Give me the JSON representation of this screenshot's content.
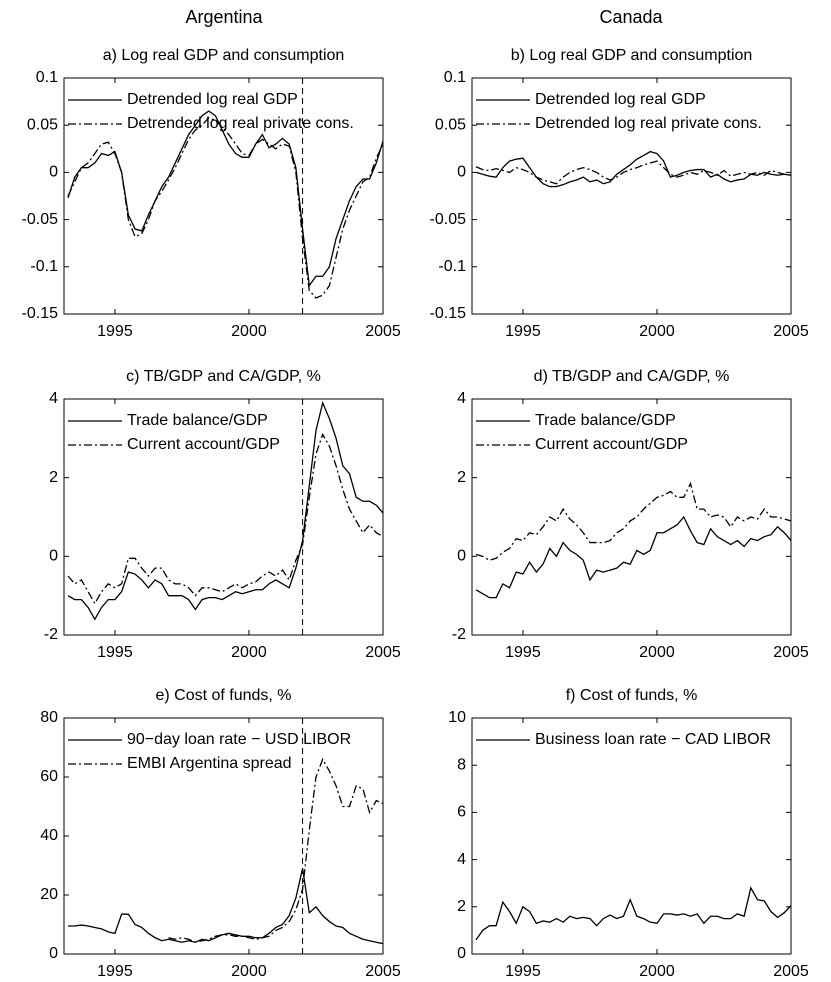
{
  "column_titles": [
    "Argentina",
    "Canada"
  ],
  "chart_data": [
    {
      "type": "line",
      "title": "a) Log real GDP and consumption",
      "legend": "upper left",
      "grid": false,
      "vline": 2002,
      "x": [
        1993.25,
        1993.5,
        1993.75,
        1994,
        1994.25,
        1994.5,
        1994.75,
        1995,
        1995.25,
        1995.5,
        1995.75,
        1996,
        1996.25,
        1996.5,
        1996.75,
        1997,
        1997.25,
        1997.5,
        1997.75,
        1998,
        1998.25,
        1998.5,
        1998.75,
        1999,
        1999.25,
        1999.5,
        1999.75,
        2000,
        2000.25,
        2000.5,
        2000.75,
        2001,
        2001.25,
        2001.5,
        2001.75,
        2002,
        2002.25,
        2002.5,
        2002.75,
        2003,
        2003.25,
        2003.5,
        2003.75,
        2004,
        2004.25,
        2004.5,
        2004.75,
        2005
      ],
      "xlim": [
        1993.1,
        2005
      ],
      "xticks": [
        1995,
        2000,
        2005
      ],
      "ylim": [
        -0.15,
        0.1
      ],
      "yticks": [
        -0.15,
        -0.1,
        -0.05,
        0,
        0.05,
        0.1
      ],
      "series": [
        {
          "name": "Detrended log real GDP",
          "color": "#000000",
          "style": "solid",
          "values": [
            -0.027,
            -0.005,
            0.005,
            0.005,
            0.01,
            0.02,
            0.018,
            0.022,
            0.0,
            -0.045,
            -0.06,
            -0.062,
            -0.045,
            -0.03,
            -0.015,
            -0.005,
            0.01,
            0.025,
            0.04,
            0.05,
            0.06,
            0.065,
            0.06,
            0.045,
            0.03,
            0.02,
            0.016,
            0.016,
            0.03,
            0.04,
            0.026,
            0.03,
            0.036,
            0.03,
            0.005,
            -0.06,
            -0.12,
            -0.11,
            -0.11,
            -0.1,
            -0.07,
            -0.05,
            -0.03,
            -0.015,
            -0.007,
            -0.007,
            0.01,
            0.033
          ]
        },
        {
          "name": "Detrended log real private cons.",
          "color": "#000000",
          "style": "dashdot",
          "values": [
            -0.025,
            -0.01,
            0.005,
            0.01,
            0.02,
            0.03,
            0.032,
            0.02,
            0.0,
            -0.05,
            -0.068,
            -0.065,
            -0.05,
            -0.03,
            -0.02,
            -0.008,
            0.005,
            0.02,
            0.035,
            0.045,
            0.05,
            0.058,
            0.055,
            0.048,
            0.04,
            0.03,
            0.02,
            0.018,
            0.03,
            0.035,
            0.03,
            0.025,
            0.03,
            0.028,
            0.0,
            -0.07,
            -0.125,
            -0.133,
            -0.13,
            -0.12,
            -0.09,
            -0.06,
            -0.04,
            -0.025,
            -0.01,
            -0.005,
            0.015,
            0.03
          ]
        }
      ]
    },
    {
      "type": "line",
      "title": "b) Log real GDP and consumption",
      "legend": "upper left",
      "grid": false,
      "x": [
        1993.25,
        1993.5,
        1993.75,
        1994,
        1994.25,
        1994.5,
        1994.75,
        1995,
        1995.25,
        1995.5,
        1995.75,
        1996,
        1996.25,
        1996.5,
        1996.75,
        1997,
        1997.25,
        1997.5,
        1997.75,
        1998,
        1998.25,
        1998.5,
        1998.75,
        1999,
        1999.25,
        1999.5,
        1999.75,
        2000,
        2000.25,
        2000.5,
        2000.75,
        2001,
        2001.25,
        2001.5,
        2001.75,
        2002,
        2002.25,
        2002.5,
        2002.75,
        2003,
        2003.25,
        2003.5,
        2003.75,
        2004,
        2004.25,
        2004.5,
        2004.75,
        2005
      ],
      "xlim": [
        1993.1,
        2005
      ],
      "xticks": [
        1995,
        2000,
        2005
      ],
      "ylim": [
        -0.15,
        0.1
      ],
      "yticks": [
        -0.15,
        -0.1,
        -0.05,
        0,
        0.05,
        0.1
      ],
      "series": [
        {
          "name": "Detrended log real GDP",
          "color": "#000000",
          "style": "solid",
          "values": [
            0.0,
            -0.002,
            -0.004,
            -0.005,
            0.005,
            0.012,
            0.014,
            0.015,
            0.005,
            -0.005,
            -0.012,
            -0.015,
            -0.015,
            -0.013,
            -0.01,
            -0.008,
            -0.005,
            -0.01,
            -0.008,
            -0.012,
            -0.01,
            -0.002,
            0.003,
            0.008,
            0.014,
            0.018,
            0.022,
            0.02,
            0.012,
            -0.005,
            -0.003,
            0.0,
            0.002,
            0.003,
            0.003,
            -0.005,
            -0.002,
            -0.007,
            -0.01,
            -0.008,
            -0.007,
            -0.002,
            -0.003,
            0.0,
            -0.002,
            -0.003,
            -0.002,
            -0.003
          ]
        },
        {
          "name": "Detrended log real private cons.",
          "color": "#000000",
          "style": "dashdot",
          "values": [
            0.006,
            0.003,
            0.002,
            0.004,
            0.002,
            0.0,
            0.005,
            0.003,
            0.0,
            -0.005,
            -0.008,
            -0.01,
            -0.012,
            -0.005,
            0.0,
            0.003,
            0.005,
            0.003,
            0.0,
            -0.005,
            -0.008,
            -0.005,
            0.0,
            0.003,
            0.005,
            0.008,
            0.01,
            0.012,
            0.005,
            -0.002,
            -0.005,
            -0.003,
            0.0,
            -0.002,
            0.002,
            0.0,
            -0.003,
            0.002,
            -0.004,
            -0.002,
            0.0,
            -0.002,
            0.0,
            -0.003,
            0.002,
            0.0,
            -0.002,
            -0.003
          ]
        }
      ]
    },
    {
      "type": "line",
      "title": "c) TB/GDP and CA/GDP, %",
      "legend": "upper left",
      "grid": false,
      "vline": 2002,
      "x": [
        1993.25,
        1993.5,
        1993.75,
        1994,
        1994.25,
        1994.5,
        1994.75,
        1995,
        1995.25,
        1995.5,
        1995.75,
        1996,
        1996.25,
        1996.5,
        1996.75,
        1997,
        1997.25,
        1997.5,
        1997.75,
        1998,
        1998.25,
        1998.5,
        1998.75,
        1999,
        1999.25,
        1999.5,
        1999.75,
        2000,
        2000.25,
        2000.5,
        2000.75,
        2001,
        2001.25,
        2001.5,
        2001.75,
        2002,
        2002.25,
        2002.5,
        2002.75,
        2003,
        2003.25,
        2003.5,
        2003.75,
        2004,
        2004.25,
        2004.5,
        2004.75,
        2005
      ],
      "xlim": [
        1993.1,
        2005
      ],
      "xticks": [
        1995,
        2000,
        2005
      ],
      "ylim": [
        -2,
        4
      ],
      "yticks": [
        -2,
        0,
        2,
        4
      ],
      "series": [
        {
          "name": "Trade balance/GDP",
          "color": "#000000",
          "style": "solid",
          "values": [
            -1.0,
            -1.1,
            -1.1,
            -1.3,
            -1.6,
            -1.3,
            -1.1,
            -1.1,
            -0.9,
            -0.4,
            -0.45,
            -0.6,
            -0.8,
            -0.6,
            -0.7,
            -1.0,
            -1.0,
            -1.0,
            -1.1,
            -1.35,
            -1.1,
            -1.05,
            -1.05,
            -1.1,
            -1.0,
            -0.9,
            -0.95,
            -0.9,
            -0.85,
            -0.85,
            -0.7,
            -0.6,
            -0.7,
            -0.8,
            -0.3,
            0.4,
            1.8,
            3.2,
            3.9,
            3.5,
            3.0,
            2.3,
            2.1,
            1.5,
            1.4,
            1.4,
            1.3,
            1.1
          ]
        },
        {
          "name": "Current account/GDP",
          "color": "#000000",
          "style": "dashdot",
          "values": [
            -0.5,
            -0.7,
            -0.6,
            -0.9,
            -1.2,
            -0.9,
            -0.7,
            -0.8,
            -0.7,
            -0.05,
            -0.05,
            -0.3,
            -0.5,
            -0.3,
            -0.3,
            -0.6,
            -0.7,
            -0.7,
            -0.8,
            -1.0,
            -0.8,
            -0.8,
            -0.85,
            -0.9,
            -0.8,
            -0.7,
            -0.8,
            -0.7,
            -0.65,
            -0.5,
            -0.4,
            -0.5,
            -0.35,
            -0.6,
            -0.1,
            0.3,
            1.5,
            2.6,
            3.1,
            2.8,
            2.3,
            1.7,
            1.2,
            0.9,
            0.6,
            0.8,
            0.6,
            0.5
          ]
        }
      ]
    },
    {
      "type": "line",
      "title": "d) TB/GDP and CA/GDP, %",
      "legend": "upper left",
      "grid": false,
      "x": [
        1993.25,
        1993.5,
        1993.75,
        1994,
        1994.25,
        1994.5,
        1994.75,
        1995,
        1995.25,
        1995.5,
        1995.75,
        1996,
        1996.25,
        1996.5,
        1996.75,
        1997,
        1997.25,
        1997.5,
        1997.75,
        1998,
        1998.25,
        1998.5,
        1998.75,
        1999,
        1999.25,
        1999.5,
        1999.75,
        2000,
        2000.25,
        2000.5,
        2000.75,
        2001,
        2001.25,
        2001.5,
        2001.75,
        2002,
        2002.25,
        2002.5,
        2002.75,
        2003,
        2003.25,
        2003.5,
        2003.75,
        2004,
        2004.25,
        2004.5,
        2004.75,
        2005
      ],
      "xlim": [
        1993.1,
        2005
      ],
      "xticks": [
        1995,
        2000,
        2005
      ],
      "ylim": [
        -2,
        4
      ],
      "yticks": [
        -2,
        0,
        2,
        4
      ],
      "series": [
        {
          "name": "Trade balance/GDP",
          "color": "#000000",
          "style": "solid",
          "values": [
            -0.85,
            -0.95,
            -1.05,
            -1.05,
            -0.7,
            -0.8,
            -0.4,
            -0.45,
            -0.15,
            -0.4,
            -0.2,
            0.2,
            0.0,
            0.35,
            0.15,
            0.05,
            -0.1,
            -0.6,
            -0.35,
            -0.4,
            -0.35,
            -0.3,
            -0.15,
            -0.2,
            0.15,
            0.05,
            0.15,
            0.6,
            0.6,
            0.7,
            0.8,
            1.0,
            0.65,
            0.35,
            0.3,
            0.7,
            0.5,
            0.4,
            0.3,
            0.4,
            0.25,
            0.45,
            0.4,
            0.5,
            0.55,
            0.75,
            0.6,
            0.4
          ]
        },
        {
          "name": "Current account/GDP",
          "color": "#000000",
          "style": "dashdot",
          "values": [
            0.05,
            0.0,
            -0.1,
            -0.05,
            0.1,
            0.2,
            0.45,
            0.4,
            0.6,
            0.55,
            0.75,
            1.0,
            0.9,
            1.2,
            0.95,
            0.8,
            0.6,
            0.35,
            0.35,
            0.35,
            0.4,
            0.6,
            0.7,
            0.9,
            1.0,
            1.2,
            1.35,
            1.5,
            1.55,
            1.65,
            1.5,
            1.5,
            1.85,
            1.2,
            1.2,
            1.0,
            1.05,
            1.0,
            0.75,
            1.0,
            0.9,
            1.0,
            0.95,
            1.2,
            1.0,
            1.0,
            0.95,
            0.9
          ]
        }
      ]
    },
    {
      "type": "line",
      "title": "e) Cost of funds, %",
      "legend": "upper left",
      "grid": false,
      "vline": 2002,
      "x": [
        1993.25,
        1993.5,
        1993.75,
        1994,
        1994.25,
        1994.5,
        1994.75,
        1995,
        1995.25,
        1995.5,
        1995.75,
        1996,
        1996.25,
        1996.5,
        1996.75,
        1997,
        1997.25,
        1997.5,
        1997.75,
        1998,
        1998.25,
        1998.5,
        1998.75,
        1999,
        1999.25,
        1999.5,
        1999.75,
        2000,
        2000.25,
        2000.5,
        2000.75,
        2001,
        2001.25,
        2001.5,
        2001.75,
        2002,
        2002.25,
        2002.5,
        2002.75,
        2003,
        2003.25,
        2003.5,
        2003.75,
        2004,
        2004.25,
        2004.5,
        2004.75,
        2005
      ],
      "xlim": [
        1993.1,
        2005
      ],
      "xticks": [
        1995,
        2000,
        2005
      ],
      "ylim": [
        0,
        80
      ],
      "yticks": [
        0,
        20,
        40,
        60,
        80
      ],
      "series": [
        {
          "name": "90−day loan rate − USD LIBOR",
          "color": "#000000",
          "style": "solid",
          "values": [
            9.5,
            9.5,
            9.8,
            9.5,
            9.0,
            8.5,
            7.5,
            7.0,
            13.5,
            13.5,
            10,
            9,
            7,
            5.5,
            4.5,
            5.0,
            4.5,
            4.0,
            4.5,
            4.0,
            5,
            4.5,
            5.5,
            6.5,
            7,
            6.5,
            6,
            6,
            5.5,
            5.5,
            7,
            9,
            10,
            13,
            19,
            29,
            14,
            16,
            13,
            11,
            9.5,
            9,
            7,
            6,
            5,
            4.5,
            4,
            3.5
          ]
        },
        {
          "name": "EMBI Argentina spread",
          "color": "#000000",
          "style": "dashdot",
          "values": [
            null,
            null,
            null,
            null,
            null,
            null,
            null,
            null,
            null,
            null,
            null,
            null,
            null,
            null,
            null,
            5.5,
            5,
            5.5,
            5,
            4,
            4.5,
            5,
            6,
            6.5,
            6.5,
            6,
            6,
            5.5,
            5,
            5.5,
            6,
            8,
            9,
            11,
            15,
            22,
            42,
            60,
            66,
            62,
            57,
            50,
            50,
            57,
            56,
            48,
            52,
            51
          ]
        }
      ]
    },
    {
      "type": "line",
      "title": "f) Cost of funds, %",
      "legend": "upper left",
      "grid": false,
      "x": [
        1993.25,
        1993.5,
        1993.75,
        1994,
        1994.25,
        1994.5,
        1994.75,
        1995,
        1995.25,
        1995.5,
        1995.75,
        1996,
        1996.25,
        1996.5,
        1996.75,
        1997,
        1997.25,
        1997.5,
        1997.75,
        1998,
        1998.25,
        1998.5,
        1998.75,
        1999,
        1999.25,
        1999.5,
        1999.75,
        2000,
        2000.25,
        2000.5,
        2000.75,
        2001,
        2001.25,
        2001.5,
        2001.75,
        2002,
        2002.25,
        2002.5,
        2002.75,
        2003,
        2003.25,
        2003.5,
        2003.75,
        2004,
        2004.25,
        2004.5,
        2004.75,
        2005
      ],
      "xlim": [
        1993.1,
        2005
      ],
      "xticks": [
        1995,
        2000,
        2005
      ],
      "ylim": [
        0,
        10
      ],
      "yticks": [
        0,
        2,
        4,
        6,
        8,
        10
      ],
      "series": [
        {
          "name": "Business loan rate − CAD LIBOR",
          "color": "#000000",
          "style": "solid",
          "values": [
            0.6,
            1.0,
            1.2,
            1.2,
            2.2,
            1.8,
            1.3,
            2.0,
            1.8,
            1.3,
            1.4,
            1.35,
            1.5,
            1.35,
            1.6,
            1.5,
            1.55,
            1.5,
            1.2,
            1.5,
            1.65,
            1.5,
            1.6,
            2.3,
            1.6,
            1.5,
            1.35,
            1.3,
            1.7,
            1.7,
            1.65,
            1.7,
            1.6,
            1.7,
            1.3,
            1.6,
            1.6,
            1.5,
            1.5,
            1.7,
            1.6,
            2.8,
            2.3,
            2.25,
            1.8,
            1.55,
            1.75,
            2.05
          ]
        }
      ]
    }
  ]
}
